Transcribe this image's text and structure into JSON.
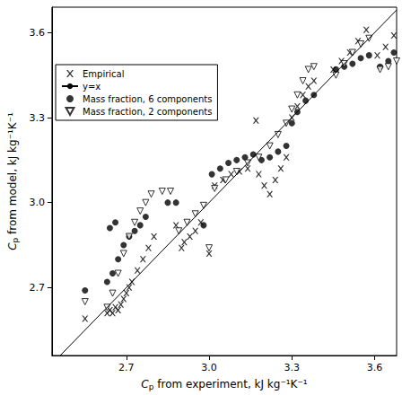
{
  "chart_data": {
    "type": "scatter",
    "x_label": "Cp from experiment, kJ kg⁻¹K⁻¹",
    "y_label": "Cp from model, kJ kg⁻¹K⁻¹",
    "xlim": [
      2.43,
      3.68
    ],
    "ylim": [
      2.46,
      3.69
    ],
    "xticks": [
      2.7,
      {
        "value": 3.0,
        "label": "3.0"
      },
      3.3,
      3.6
    ],
    "yticks": [
      2.7,
      {
        "value": 3.0,
        "label": "3.0"
      },
      3.3,
      3.6
    ],
    "grid": false,
    "legend": "upper left",
    "series": [
      {
        "name": "Empirical",
        "type": "scatter",
        "marker": "x",
        "color": "#000000",
        "x": [
          2.55,
          2.63,
          2.64,
          2.65,
          2.66,
          2.67,
          2.68,
          2.69,
          2.7,
          2.71,
          2.72,
          2.74,
          2.76,
          2.78,
          2.8,
          2.88,
          2.9,
          2.91,
          2.93,
          2.95,
          2.97,
          3.0,
          3.02,
          3.05,
          3.08,
          3.11,
          3.14,
          3.17,
          3.18,
          3.2,
          3.22,
          3.24,
          3.26,
          3.28,
          3.3,
          3.32,
          3.34,
          3.36,
          3.38,
          3.45,
          3.48,
          3.51,
          3.54,
          3.57,
          3.61,
          3.64,
          3.67
        ],
        "values": [
          2.59,
          2.61,
          2.62,
          2.61,
          2.63,
          2.62,
          2.64,
          2.66,
          2.68,
          2.7,
          2.72,
          2.76,
          2.8,
          2.84,
          2.88,
          2.92,
          2.84,
          2.86,
          2.88,
          2.9,
          2.93,
          2.82,
          3.06,
          3.08,
          3.1,
          3.11,
          3.12,
          3.29,
          3.1,
          3.06,
          3.03,
          3.08,
          3.12,
          3.16,
          3.3,
          3.34,
          3.38,
          3.41,
          3.43,
          3.47,
          3.5,
          3.53,
          3.57,
          3.61,
          3.52,
          3.55,
          3.59
        ]
      },
      {
        "name": "y=x",
        "type": "line",
        "line_style": "solid",
        "color": "#000000",
        "x": [
          2.46,
          3.68
        ],
        "values": [
          2.46,
          3.68
        ]
      },
      {
        "name": "Mass fraction, 6 components",
        "type": "scatter",
        "marker": "circle",
        "color": "#000000",
        "x": [
          2.55,
          2.63,
          2.65,
          2.67,
          2.69,
          2.71,
          2.73,
          2.75,
          2.77,
          2.64,
          2.66,
          2.85,
          2.88,
          2.98,
          3.01,
          3.04,
          3.07,
          3.1,
          3.13,
          3.16,
          3.19,
          3.22,
          3.25,
          3.28,
          3.3,
          3.32,
          3.35,
          3.38,
          3.46,
          3.49,
          3.52,
          3.55,
          3.58,
          3.62,
          3.65,
          3.67
        ],
        "values": [
          2.69,
          2.72,
          2.75,
          2.8,
          2.85,
          2.88,
          2.9,
          2.92,
          2.95,
          2.91,
          2.93,
          3.0,
          3.0,
          2.92,
          3.1,
          3.12,
          3.14,
          3.15,
          3.16,
          3.17,
          3.15,
          3.16,
          3.18,
          3.2,
          3.28,
          3.32,
          3.36,
          3.38,
          3.47,
          3.48,
          3.49,
          3.51,
          3.52,
          3.48,
          3.5,
          3.53
        ]
      },
      {
        "name": "Mass fraction, 2 components",
        "type": "scatter",
        "marker": "triangle-down-open",
        "color": "#000000",
        "x": [
          2.55,
          2.63,
          2.65,
          2.67,
          2.69,
          2.71,
          2.73,
          2.75,
          2.77,
          2.79,
          2.83,
          2.86,
          2.89,
          2.92,
          2.95,
          2.98,
          3.0,
          3.02,
          3.06,
          3.1,
          3.14,
          3.18,
          3.22,
          3.25,
          3.28,
          3.3,
          3.32,
          3.34,
          3.36,
          3.38,
          3.46,
          3.49,
          3.52,
          3.55,
          3.58,
          3.62,
          3.65,
          3.68
        ],
        "values": [
          2.65,
          2.63,
          2.68,
          2.75,
          2.82,
          2.88,
          2.93,
          2.97,
          3.0,
          3.03,
          3.04,
          3.04,
          2.9,
          2.93,
          2.96,
          2.99,
          2.84,
          3.05,
          3.08,
          3.11,
          3.14,
          3.16,
          3.2,
          3.24,
          3.28,
          3.33,
          3.38,
          3.43,
          3.47,
          3.48,
          3.45,
          3.49,
          3.53,
          3.56,
          3.58,
          3.47,
          3.48,
          3.5
        ]
      }
    ]
  }
}
